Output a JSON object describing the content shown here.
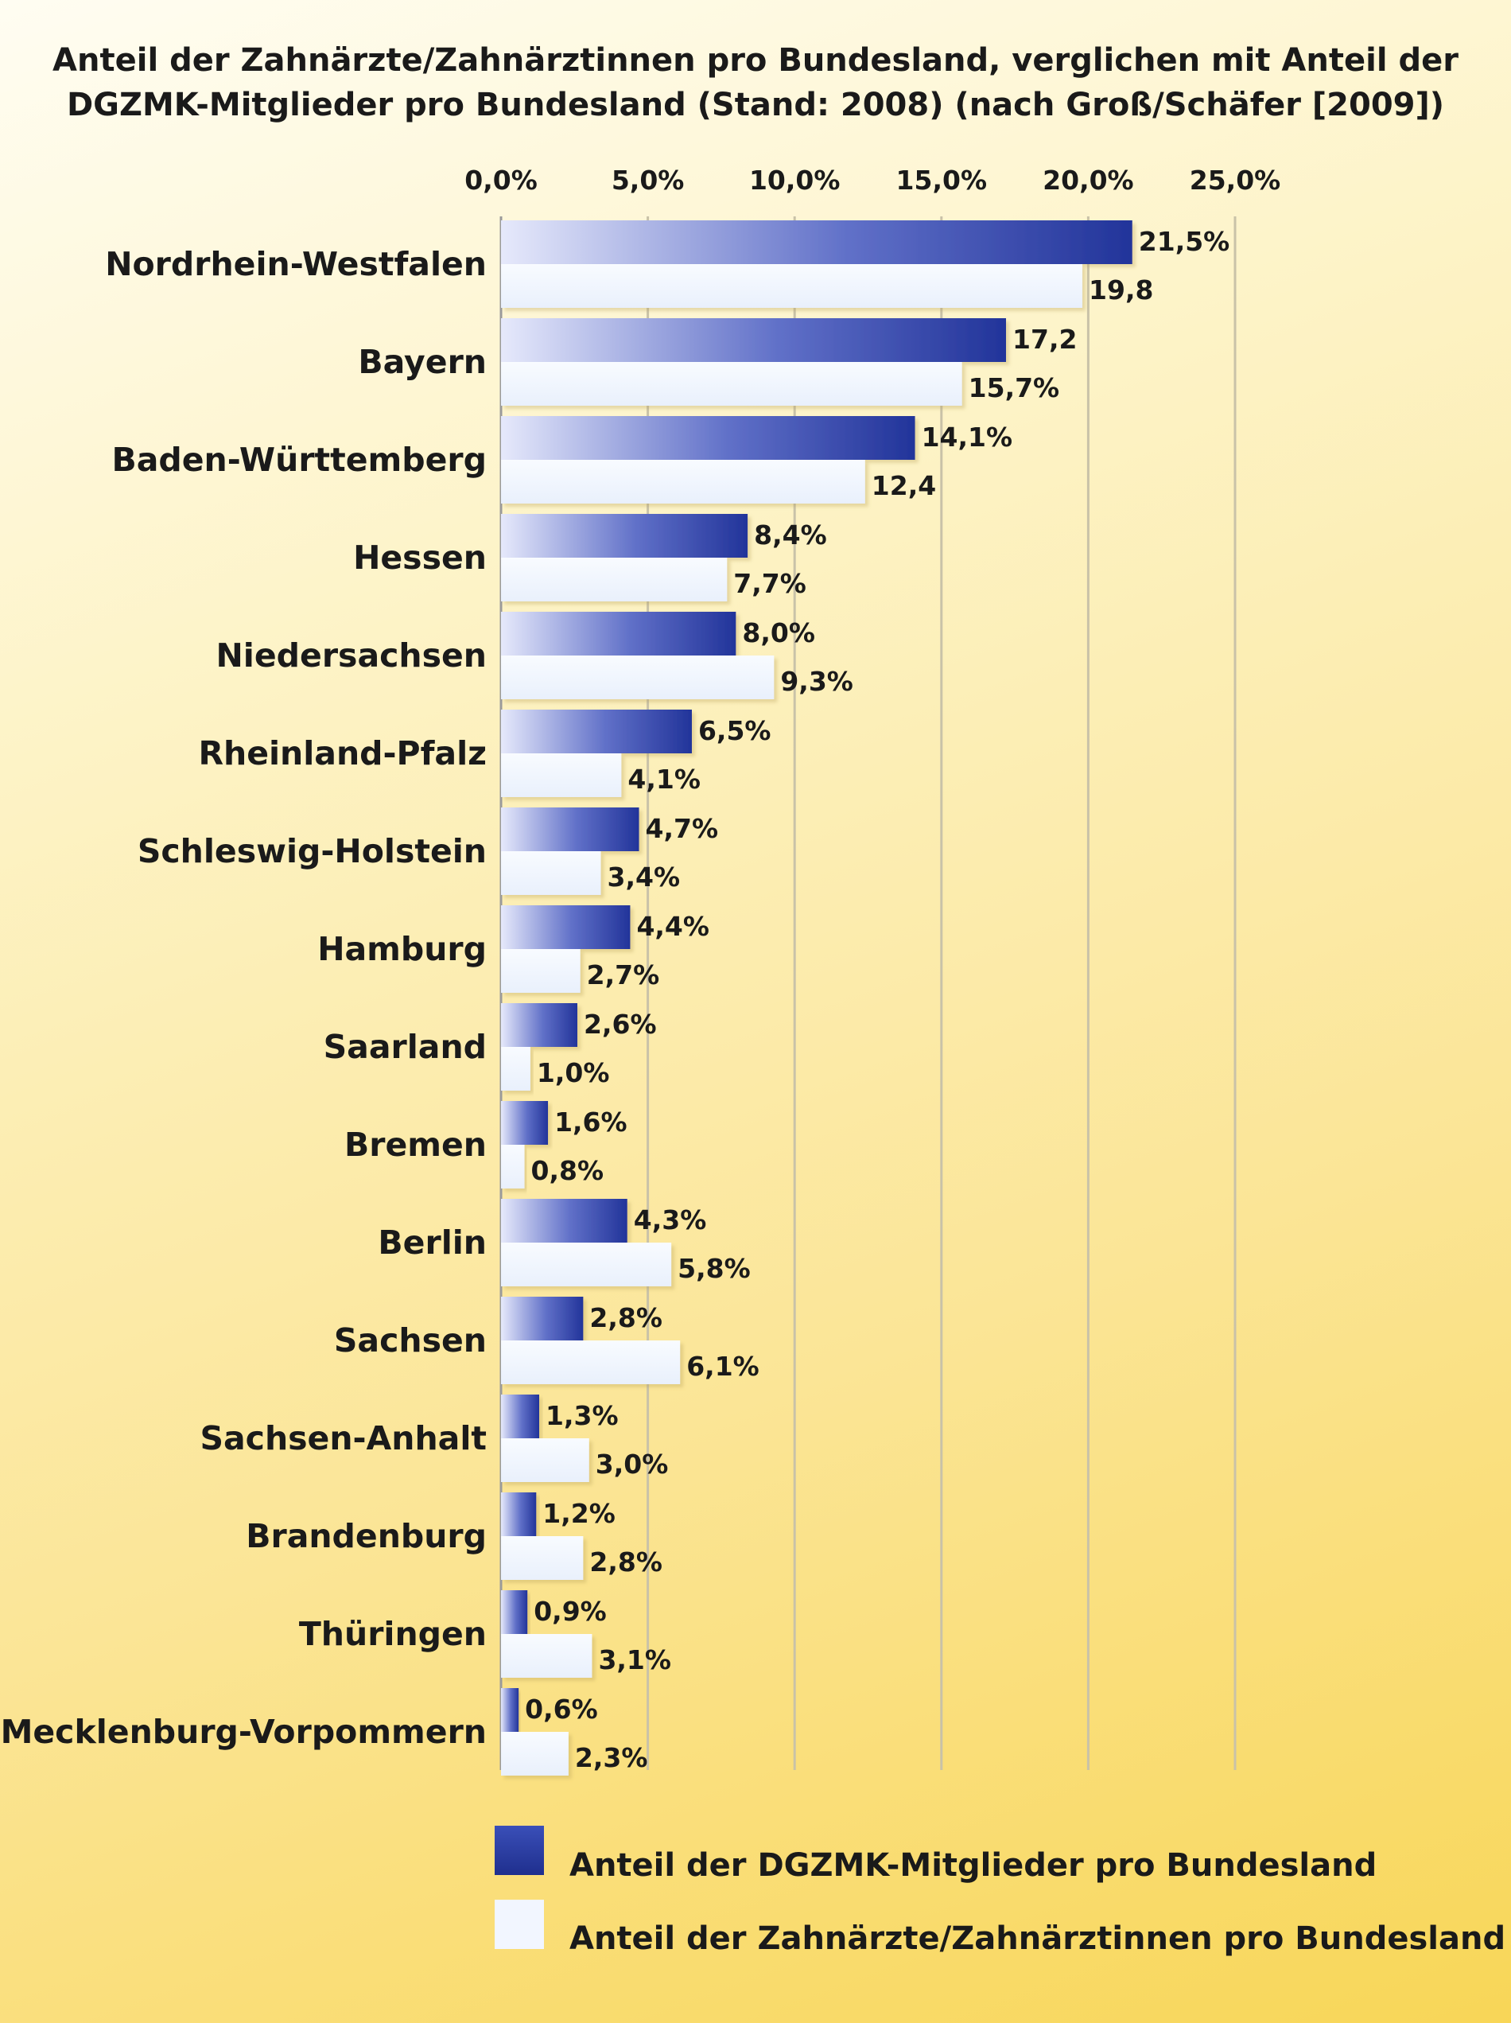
{
  "chart_data": {
    "type": "bar",
    "orientation": "horizontal",
    "title_lines": [
      "Anteil der Zahnärzte/Zahnärztinnen pro Bundesland, verglichen mit Anteil der",
      "DGZMK-Mitglieder pro Bundesland (Stand: 2008) (nach Groß/Schäfer [2009])"
    ],
    "x_ticks": [
      "0,0%",
      "5,0%",
      "10,0%",
      "15,0%",
      "20,0%",
      "25,0%"
    ],
    "xlim": [
      0,
      25
    ],
    "grid": true,
    "legend_position": "bottom",
    "categories": [
      "Nordrhein-Westfalen",
      "Bayern",
      "Baden-Württemberg",
      "Hessen",
      "Niedersachsen",
      "Rheinland-Pfalz",
      "Schleswig-Holstein",
      "Hamburg",
      "Saarland",
      "Bremen",
      "Berlin",
      "Sachsen",
      "Sachsen-Anhalt",
      "Brandenburg",
      "Thüringen",
      "Mecklenburg-Vorpommern"
    ],
    "series": [
      {
        "name": "Anteil der DGZMK-Mitglieder pro Bundesland",
        "color": "#2a3a9c",
        "values": [
          21.5,
          17.2,
          14.1,
          8.4,
          8.0,
          6.5,
          4.7,
          4.4,
          2.6,
          1.6,
          4.3,
          2.8,
          1.3,
          1.2,
          0.9,
          0.6
        ],
        "labels": [
          "21,5%",
          "17,2",
          "14,1%",
          "8,4%",
          "8,0%",
          "6,5%",
          "4,7%",
          "4,4%",
          "2,6%",
          "1,6%",
          "4,3%",
          "2,8%",
          "1,3%",
          "1,2%",
          "0,9%",
          "0,6%"
        ]
      },
      {
        "name": "Anteil der Zahnärzte/Zahnärztinnen pro Bundesland",
        "color": "#f2f6ff",
        "values": [
          19.8,
          15.7,
          12.4,
          7.7,
          9.3,
          4.1,
          3.4,
          2.7,
          1.0,
          0.8,
          5.8,
          6.1,
          3.0,
          2.8,
          3.1,
          2.3
        ],
        "labels": [
          "19,8",
          "15,7%",
          "12,4",
          "7,7%",
          "9,3%",
          "4,1%",
          "3,4%",
          "2,7%",
          "1,0%",
          "0,8%",
          "5,8%",
          "6,1%",
          "3,0%",
          "2,8%",
          "3,1%",
          "2,3%"
        ]
      }
    ]
  }
}
